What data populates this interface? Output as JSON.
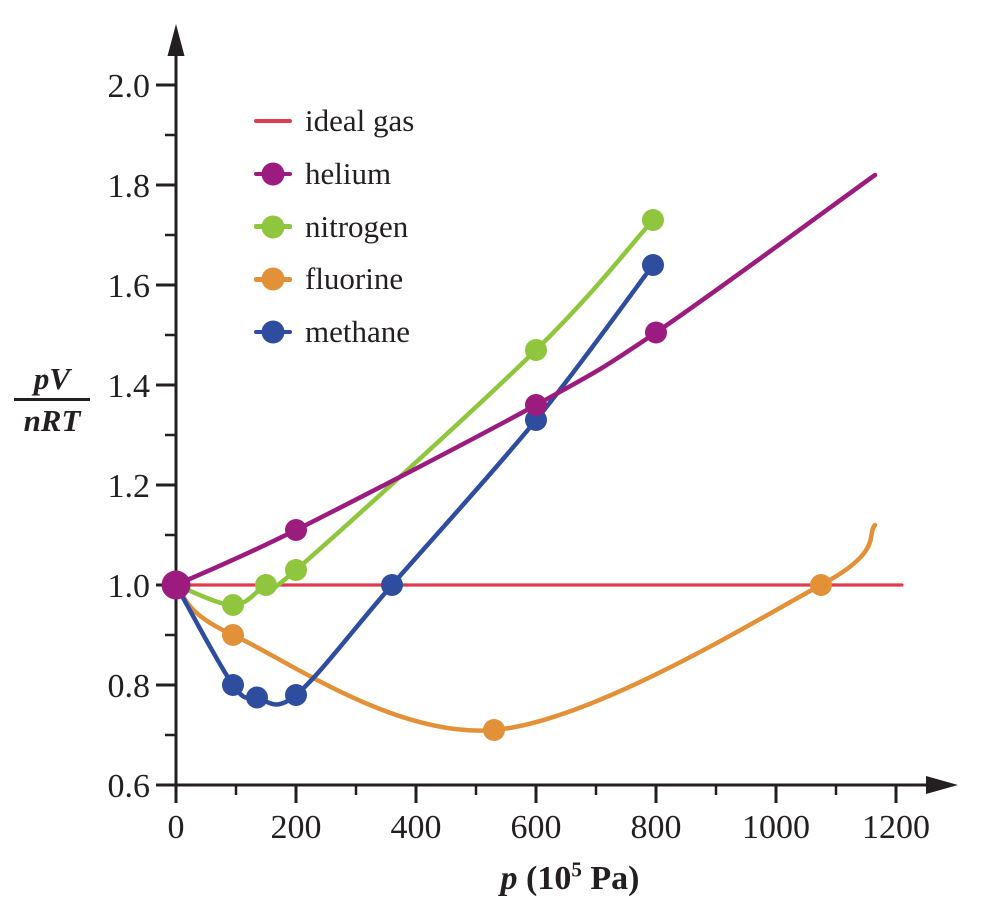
{
  "figure": {
    "background": "#ffffff",
    "ink_color": "#231F20"
  },
  "chart_data": {
    "type": "line",
    "title": "",
    "grid": false,
    "xlabel": {
      "variable": "p",
      "unit_prefix": " (10",
      "unit_sup": "5",
      "unit_suffix": " Pa)"
    },
    "ylabel": {
      "numerator": "pV",
      "denominator": "nRT"
    },
    "x_axis": {
      "min": 0,
      "max": 1300,
      "major_ticks": [
        0,
        200,
        400,
        600,
        800,
        1000,
        1200
      ],
      "major_tick_labels": [
        "0",
        "200",
        "400",
        "600",
        "800",
        "1000",
        "1200"
      ],
      "minor_ticks": [
        100,
        300,
        500,
        700,
        900,
        1100
      ]
    },
    "y_axis": {
      "min": 0.6,
      "max": 2.1,
      "major_ticks": [
        0.6,
        0.8,
        1.0,
        1.2,
        1.4,
        1.6,
        1.8,
        2.0
      ],
      "major_tick_labels": [
        "0.6",
        "0.8",
        "1.0",
        "1.2",
        "1.4",
        "1.6",
        "1.8",
        "2.0"
      ],
      "minor_ticks": [
        0.7,
        0.9,
        1.1,
        1.3,
        1.5,
        1.7,
        1.9
      ]
    },
    "series": [
      {
        "id": "ideal-gas",
        "name": "ideal gas",
        "color": "#E03C50",
        "marker": false,
        "line_width": 3.2,
        "line_only_tail": 0,
        "points": [
          [
            0,
            1.0
          ],
          [
            1210,
            1.0
          ]
        ]
      },
      {
        "id": "fluorine",
        "name": "fluorine",
        "color": "#E39138",
        "marker": true,
        "line_width": 4.5,
        "line_only_tail": 1,
        "points": [
          [
            0,
            1.0
          ],
          [
            95,
            0.9
          ],
          [
            530,
            0.71
          ],
          [
            1075,
            1.0
          ],
          [
            1165,
            1.12
          ]
        ]
      },
      {
        "id": "nitrogen",
        "name": "nitrogen",
        "color": "#8FC63E",
        "marker": true,
        "line_width": 4.5,
        "line_only_tail": 0,
        "points": [
          [
            0,
            1.0
          ],
          [
            95,
            0.96
          ],
          [
            150,
            1.0
          ],
          [
            200,
            1.03
          ],
          [
            600,
            1.47
          ],
          [
            795,
            1.73
          ]
        ]
      },
      {
        "id": "methane",
        "name": "methane",
        "color": "#2F4D9E",
        "marker": true,
        "line_width": 4.5,
        "line_only_tail": 0,
        "points": [
          [
            0,
            1.0
          ],
          [
            95,
            0.8
          ],
          [
            135,
            0.775
          ],
          [
            200,
            0.78
          ],
          [
            360,
            1.0
          ],
          [
            600,
            1.33
          ],
          [
            795,
            1.64
          ]
        ]
      },
      {
        "id": "helium",
        "name": "helium",
        "color": "#9C1B7E",
        "marker": true,
        "line_width": 4.5,
        "line_only_tail": 1,
        "big_origin_marker": true,
        "points": [
          [
            0,
            1.0
          ],
          [
            200,
            1.11
          ],
          [
            600,
            1.36
          ],
          [
            800,
            1.505
          ],
          [
            1165,
            1.82
          ]
        ]
      }
    ],
    "legend": {
      "position": "top-left",
      "items": [
        {
          "label": "ideal gas",
          "color": "#E03C50",
          "marker": false
        },
        {
          "label": "helium",
          "color": "#9C1B7E",
          "marker": true
        },
        {
          "label": "nitrogen",
          "color": "#8FC63E",
          "marker": true
        },
        {
          "label": "fluorine",
          "color": "#E39138",
          "marker": true
        },
        {
          "label": "methane",
          "color": "#2F4D9E",
          "marker": true
        }
      ]
    }
  }
}
